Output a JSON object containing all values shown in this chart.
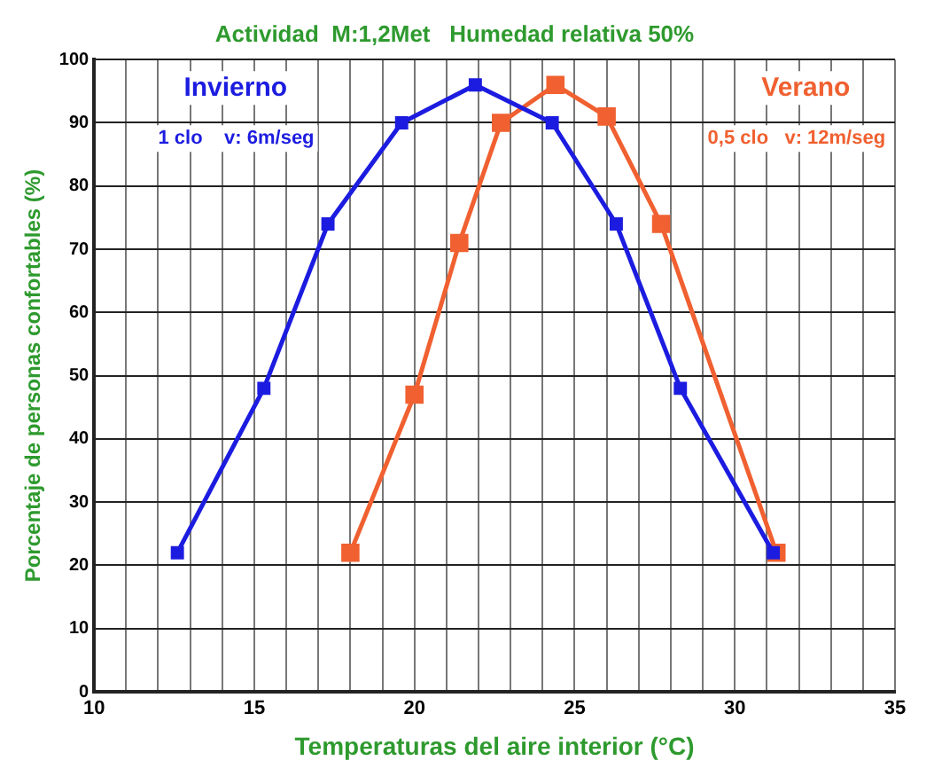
{
  "chart_data": {
    "type": "line",
    "title": "Actividad  M:1,2Met   Humedad relativa 50%",
    "xlabel": "Temperaturas del aire interior (°C)",
    "ylabel": "Porcentaje de personas confortables (%)",
    "annotations": [
      "1 clo    v: 6m/seg",
      "0,5 clo   v: 12m/seg"
    ],
    "series": [
      {
        "name": "Invierno",
        "color": "#1c1ce0",
        "x": [
          12.6,
          15.3,
          17.3,
          19.6,
          21.9,
          24.3,
          26.3,
          28.3,
          31.2
        ],
        "values": [
          22,
          48,
          74,
          90,
          96,
          90,
          74,
          48,
          22
        ]
      },
      {
        "name": "Verano",
        "color": "#f06030",
        "x": [
          18,
          20,
          21.4,
          22.7,
          24.4,
          26,
          27.7,
          31.3
        ],
        "values": [
          22,
          47,
          71,
          90,
          96,
          91,
          74,
          22
        ]
      }
    ],
    "xlim": [
      10,
      35
    ],
    "ylim": [
      0,
      100
    ],
    "xticks": [
      10,
      {
        "value": 11,
        "label": null
      },
      {
        "value": 12,
        "label": null
      },
      {
        "value": 13,
        "label": null
      },
      {
        "value": 14,
        "label": null
      },
      15,
      {
        "value": 16,
        "label": null
      },
      {
        "value": 17,
        "label": null
      },
      {
        "value": 18,
        "label": null
      },
      {
        "value": 19,
        "label": null
      },
      20,
      {
        "value": 21,
        "label": null
      },
      {
        "value": 22,
        "label": null
      },
      {
        "value": 23,
        "label": null
      },
      {
        "value": 24,
        "label": null
      },
      25,
      {
        "value": 26,
        "label": null
      },
      {
        "value": 27,
        "label": null
      },
      {
        "value": 28,
        "label": null
      },
      {
        "value": 29,
        "label": null
      },
      30,
      {
        "value": 31,
        "label": null
      },
      {
        "value": 32,
        "label": null
      },
      {
        "value": 33,
        "label": null
      },
      {
        "value": 34,
        "label": null
      },
      35
    ],
    "yticks": [
      0,
      10,
      20,
      30,
      40,
      50,
      60,
      70,
      80,
      90,
      100
    ],
    "grid": true,
    "legend": false,
    "marker": "square",
    "line_style": "solid"
  }
}
